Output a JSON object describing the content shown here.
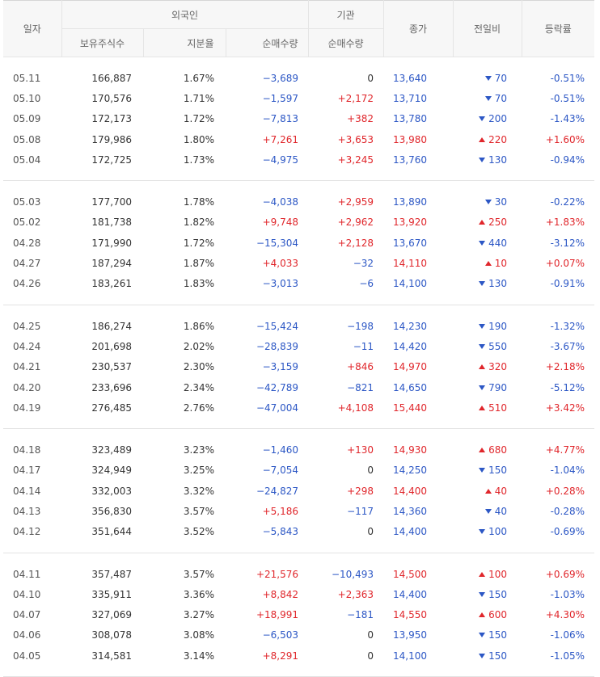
{
  "header": {
    "date": "일자",
    "foreign": "외국인",
    "institution": "기관",
    "close": "종가",
    "change": "전일비",
    "rate": "등락률",
    "holdings": "보유주식수",
    "ratio": "지분율",
    "foreign_net": "순매수량",
    "institution_net": "순매수량"
  },
  "colors": {
    "up": "#e0262b",
    "down": "#2c57c5",
    "flat": "#333333"
  },
  "groups": [
    [
      {
        "date": "05.11",
        "holdings": "166,887",
        "ratio": "1.67%",
        "fnet": "−3,689",
        "fnet_dir": "down",
        "inet": "0",
        "inet_dir": "zero",
        "close": "13,640",
        "close_dir": "down",
        "chg": "70",
        "chg_dir": "down",
        "rate": "-0.51%",
        "rate_dir": "down"
      },
      {
        "date": "05.10",
        "holdings": "170,576",
        "ratio": "1.71%",
        "fnet": "−1,597",
        "fnet_dir": "down",
        "inet": "+2,172",
        "inet_dir": "up",
        "close": "13,710",
        "close_dir": "down",
        "chg": "70",
        "chg_dir": "down",
        "rate": "-0.51%",
        "rate_dir": "down"
      },
      {
        "date": "05.09",
        "holdings": "172,173",
        "ratio": "1.72%",
        "fnet": "−7,813",
        "fnet_dir": "down",
        "inet": "+382",
        "inet_dir": "up",
        "close": "13,780",
        "close_dir": "down",
        "chg": "200",
        "chg_dir": "down",
        "rate": "-1.43%",
        "rate_dir": "down"
      },
      {
        "date": "05.08",
        "holdings": "179,986",
        "ratio": "1.80%",
        "fnet": "+7,261",
        "fnet_dir": "up",
        "inet": "+3,653",
        "inet_dir": "up",
        "close": "13,980",
        "close_dir": "up",
        "chg": "220",
        "chg_dir": "up",
        "rate": "+1.60%",
        "rate_dir": "up"
      },
      {
        "date": "05.04",
        "holdings": "172,725",
        "ratio": "1.73%",
        "fnet": "−4,975",
        "fnet_dir": "down",
        "inet": "+3,245",
        "inet_dir": "up",
        "close": "13,760",
        "close_dir": "down",
        "chg": "130",
        "chg_dir": "down",
        "rate": "-0.94%",
        "rate_dir": "down"
      }
    ],
    [
      {
        "date": "05.03",
        "holdings": "177,700",
        "ratio": "1.78%",
        "fnet": "−4,038",
        "fnet_dir": "down",
        "inet": "+2,959",
        "inet_dir": "up",
        "close": "13,890",
        "close_dir": "down",
        "chg": "30",
        "chg_dir": "down",
        "rate": "-0.22%",
        "rate_dir": "down"
      },
      {
        "date": "05.02",
        "holdings": "181,738",
        "ratio": "1.82%",
        "fnet": "+9,748",
        "fnet_dir": "up",
        "inet": "+2,962",
        "inet_dir": "up",
        "close": "13,920",
        "close_dir": "up",
        "chg": "250",
        "chg_dir": "up",
        "rate": "+1.83%",
        "rate_dir": "up"
      },
      {
        "date": "04.28",
        "holdings": "171,990",
        "ratio": "1.72%",
        "fnet": "−15,304",
        "fnet_dir": "down",
        "inet": "+2,128",
        "inet_dir": "up",
        "close": "13,670",
        "close_dir": "down",
        "chg": "440",
        "chg_dir": "down",
        "rate": "-3.12%",
        "rate_dir": "down"
      },
      {
        "date": "04.27",
        "holdings": "187,294",
        "ratio": "1.87%",
        "fnet": "+4,033",
        "fnet_dir": "up",
        "inet": "−32",
        "inet_dir": "down",
        "close": "14,110",
        "close_dir": "up",
        "chg": "10",
        "chg_dir": "up",
        "rate": "+0.07%",
        "rate_dir": "up"
      },
      {
        "date": "04.26",
        "holdings": "183,261",
        "ratio": "1.83%",
        "fnet": "−3,013",
        "fnet_dir": "down",
        "inet": "−6",
        "inet_dir": "down",
        "close": "14,100",
        "close_dir": "down",
        "chg": "130",
        "chg_dir": "down",
        "rate": "-0.91%",
        "rate_dir": "down"
      }
    ],
    [
      {
        "date": "04.25",
        "holdings": "186,274",
        "ratio": "1.86%",
        "fnet": "−15,424",
        "fnet_dir": "down",
        "inet": "−198",
        "inet_dir": "down",
        "close": "14,230",
        "close_dir": "down",
        "chg": "190",
        "chg_dir": "down",
        "rate": "-1.32%",
        "rate_dir": "down"
      },
      {
        "date": "04.24",
        "holdings": "201,698",
        "ratio": "2.02%",
        "fnet": "−28,839",
        "fnet_dir": "down",
        "inet": "−11",
        "inet_dir": "down",
        "close": "14,420",
        "close_dir": "down",
        "chg": "550",
        "chg_dir": "down",
        "rate": "-3.67%",
        "rate_dir": "down"
      },
      {
        "date": "04.21",
        "holdings": "230,537",
        "ratio": "2.30%",
        "fnet": "−3,159",
        "fnet_dir": "down",
        "inet": "+846",
        "inet_dir": "up",
        "close": "14,970",
        "close_dir": "up",
        "chg": "320",
        "chg_dir": "up",
        "rate": "+2.18%",
        "rate_dir": "up"
      },
      {
        "date": "04.20",
        "holdings": "233,696",
        "ratio": "2.34%",
        "fnet": "−42,789",
        "fnet_dir": "down",
        "inet": "−821",
        "inet_dir": "down",
        "close": "14,650",
        "close_dir": "down",
        "chg": "790",
        "chg_dir": "down",
        "rate": "-5.12%",
        "rate_dir": "down"
      },
      {
        "date": "04.19",
        "holdings": "276,485",
        "ratio": "2.76%",
        "fnet": "−47,004",
        "fnet_dir": "down",
        "inet": "+4,108",
        "inet_dir": "up",
        "close": "15,440",
        "close_dir": "up",
        "chg": "510",
        "chg_dir": "up",
        "rate": "+3.42%",
        "rate_dir": "up"
      }
    ],
    [
      {
        "date": "04.18",
        "holdings": "323,489",
        "ratio": "3.23%",
        "fnet": "−1,460",
        "fnet_dir": "down",
        "inet": "+130",
        "inet_dir": "up",
        "close": "14,930",
        "close_dir": "up",
        "chg": "680",
        "chg_dir": "up",
        "rate": "+4.77%",
        "rate_dir": "up"
      },
      {
        "date": "04.17",
        "holdings": "324,949",
        "ratio": "3.25%",
        "fnet": "−7,054",
        "fnet_dir": "down",
        "inet": "0",
        "inet_dir": "zero",
        "close": "14,250",
        "close_dir": "down",
        "chg": "150",
        "chg_dir": "down",
        "rate": "-1.04%",
        "rate_dir": "down"
      },
      {
        "date": "04.14",
        "holdings": "332,003",
        "ratio": "3.32%",
        "fnet": "−24,827",
        "fnet_dir": "down",
        "inet": "+298",
        "inet_dir": "up",
        "close": "14,400",
        "close_dir": "up",
        "chg": "40",
        "chg_dir": "up",
        "rate": "+0.28%",
        "rate_dir": "up"
      },
      {
        "date": "04.13",
        "holdings": "356,830",
        "ratio": "3.57%",
        "fnet": "+5,186",
        "fnet_dir": "up",
        "inet": "−117",
        "inet_dir": "down",
        "close": "14,360",
        "close_dir": "down",
        "chg": "40",
        "chg_dir": "down",
        "rate": "-0.28%",
        "rate_dir": "down"
      },
      {
        "date": "04.12",
        "holdings": "351,644",
        "ratio": "3.52%",
        "fnet": "−5,843",
        "fnet_dir": "down",
        "inet": "0",
        "inet_dir": "zero",
        "close": "14,400",
        "close_dir": "down",
        "chg": "100",
        "chg_dir": "down",
        "rate": "-0.69%",
        "rate_dir": "down"
      }
    ],
    [
      {
        "date": "04.11",
        "holdings": "357,487",
        "ratio": "3.57%",
        "fnet": "+21,576",
        "fnet_dir": "up",
        "inet": "−10,493",
        "inet_dir": "down",
        "close": "14,500",
        "close_dir": "up",
        "chg": "100",
        "chg_dir": "up",
        "rate": "+0.69%",
        "rate_dir": "up"
      },
      {
        "date": "04.10",
        "holdings": "335,911",
        "ratio": "3.36%",
        "fnet": "+8,842",
        "fnet_dir": "up",
        "inet": "+2,363",
        "inet_dir": "up",
        "close": "14,400",
        "close_dir": "down",
        "chg": "150",
        "chg_dir": "down",
        "rate": "-1.03%",
        "rate_dir": "down"
      },
      {
        "date": "04.07",
        "holdings": "327,069",
        "ratio": "3.27%",
        "fnet": "+18,991",
        "fnet_dir": "up",
        "inet": "−181",
        "inet_dir": "down",
        "close": "14,550",
        "close_dir": "up",
        "chg": "600",
        "chg_dir": "up",
        "rate": "+4.30%",
        "rate_dir": "up"
      },
      {
        "date": "04.06",
        "holdings": "308,078",
        "ratio": "3.08%",
        "fnet": "−6,503",
        "fnet_dir": "down",
        "inet": "0",
        "inet_dir": "zero",
        "close": "13,950",
        "close_dir": "down",
        "chg": "150",
        "chg_dir": "down",
        "rate": "-1.06%",
        "rate_dir": "down"
      },
      {
        "date": "04.05",
        "holdings": "314,581",
        "ratio": "3.14%",
        "fnet": "+8,291",
        "fnet_dir": "up",
        "inet": "0",
        "inet_dir": "zero",
        "close": "14,100",
        "close_dir": "down",
        "chg": "150",
        "chg_dir": "down",
        "rate": "-1.05%",
        "rate_dir": "down"
      }
    ]
  ]
}
